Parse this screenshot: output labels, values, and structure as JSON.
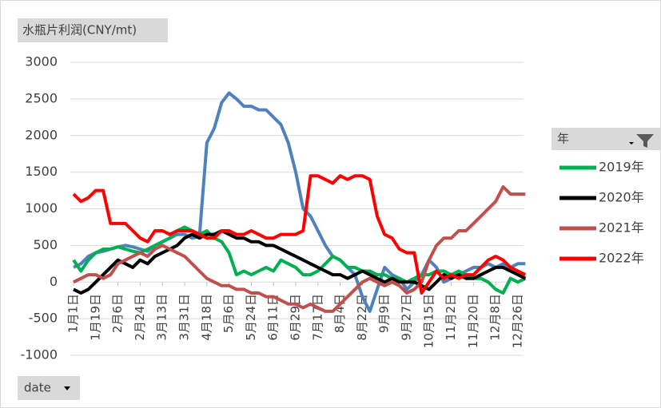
{
  "chart_data": {
    "type": "line",
    "title": "水瓶片利润(CNY/mt)",
    "x_filter_label": "date",
    "legend_title": "年",
    "categories": [
      "1月1日",
      null,
      null,
      "1月19日",
      null,
      null,
      "2月6日",
      null,
      null,
      "2月24日",
      null,
      null,
      "3月13日",
      null,
      null,
      "3月31日",
      null,
      null,
      "4月18日",
      null,
      null,
      "5月6日",
      null,
      null,
      "5月24日",
      null,
      null,
      "6月11日",
      null,
      null,
      "6月29日",
      null,
      null,
      "7月17日",
      null,
      null,
      "8月4日",
      null,
      null,
      "8月22日",
      null,
      null,
      "9月9日",
      null,
      null,
      "9月27日",
      null,
      null,
      "10月15日",
      null,
      null,
      "11月2日",
      null,
      null,
      "11月20日",
      null,
      null,
      "12月8日",
      null,
      null,
      "12月26日",
      null
    ],
    "ylim": [
      -1000,
      3000
    ],
    "yticks": [
      -1000,
      -500,
      0,
      500,
      1000,
      1500,
      2000,
      2500,
      3000
    ],
    "grid": true,
    "legend": "right",
    "series": [
      {
        "color": "#4f81bd",
        "values": [
          200,
          250,
          350,
          400,
          420,
          450,
          480,
          500,
          480,
          450,
          420,
          500,
          550,
          600,
          650,
          650,
          600,
          620,
          1900,
          2100,
          2450,
          2580,
          2500,
          2400,
          2400,
          2350,
          2350,
          2250,
          2150,
          1900,
          1500,
          1000,
          900,
          700,
          500,
          350,
          300,
          200,
          100,
          -200,
          -400,
          -100,
          200,
          100,
          50,
          -100,
          0,
          100,
          300,
          200,
          0,
          50,
          100,
          150,
          200,
          200,
          250,
          200,
          250,
          200,
          250,
          250
        ]
      },
      {
        "name": "2019年",
        "color": "#00b050",
        "values": [
          300,
          150,
          300,
          400,
          450,
          450,
          480,
          450,
          420,
          400,
          450,
          500,
          550,
          600,
          700,
          750,
          700,
          650,
          700,
          600,
          550,
          400,
          100,
          150,
          100,
          150,
          200,
          150,
          300,
          250,
          200,
          100,
          100,
          150,
          250,
          350,
          300,
          200,
          200,
          150,
          150,
          100,
          100,
          50,
          50,
          0,
          50,
          100,
          100,
          150,
          150,
          100,
          150,
          100,
          50,
          50,
          0,
          -100,
          -150,
          50,
          0,
          50
        ]
      },
      {
        "name": "2020年",
        "color": "#000000",
        "values": [
          -100,
          -150,
          -100,
          0,
          100,
          200,
          300,
          250,
          200,
          300,
          250,
          350,
          400,
          450,
          500,
          600,
          650,
          600,
          650,
          650,
          700,
          650,
          600,
          600,
          550,
          550,
          500,
          500,
          450,
          400,
          350,
          300,
          250,
          200,
          150,
          100,
          100,
          50,
          100,
          150,
          100,
          50,
          0,
          50,
          0,
          0,
          0,
          -50,
          -100,
          0,
          100,
          50,
          100,
          50,
          50,
          100,
          150,
          200,
          200,
          150,
          100,
          50
        ]
      },
      {
        "name": "2021年",
        "color": "#c0504d",
        "values": [
          0,
          50,
          100,
          100,
          50,
          100,
          250,
          300,
          350,
          400,
          350,
          450,
          500,
          450,
          400,
          350,
          250,
          150,
          50,
          0,
          -50,
          -50,
          -100,
          -100,
          -150,
          -150,
          -200,
          -200,
          -250,
          -300,
          -300,
          -350,
          -300,
          -350,
          -400,
          -400,
          -300,
          -200,
          -100,
          0,
          50,
          0,
          -50,
          0,
          -50,
          -150,
          -100,
          0,
          300,
          500,
          600,
          600,
          700,
          700,
          800,
          900,
          1000,
          1100,
          1300,
          1200,
          1200,
          1200
        ]
      },
      {
        "name": "2022年",
        "color": "#ff0000",
        "values": [
          1200,
          1100,
          1150,
          1250,
          1250,
          800,
          800,
          800,
          700,
          600,
          550,
          700,
          700,
          650,
          700,
          700,
          700,
          650,
          600,
          600,
          700,
          700,
          650,
          650,
          700,
          650,
          600,
          600,
          650,
          650,
          650,
          700,
          1450,
          1450,
          1400,
          1350,
          1450,
          1400,
          1450,
          1450,
          1400,
          900,
          650,
          600,
          450,
          400,
          400,
          -150,
          0,
          150,
          50,
          100,
          50,
          100,
          100,
          200,
          300,
          350,
          300,
          200,
          150,
          100
        ]
      }
    ]
  }
}
